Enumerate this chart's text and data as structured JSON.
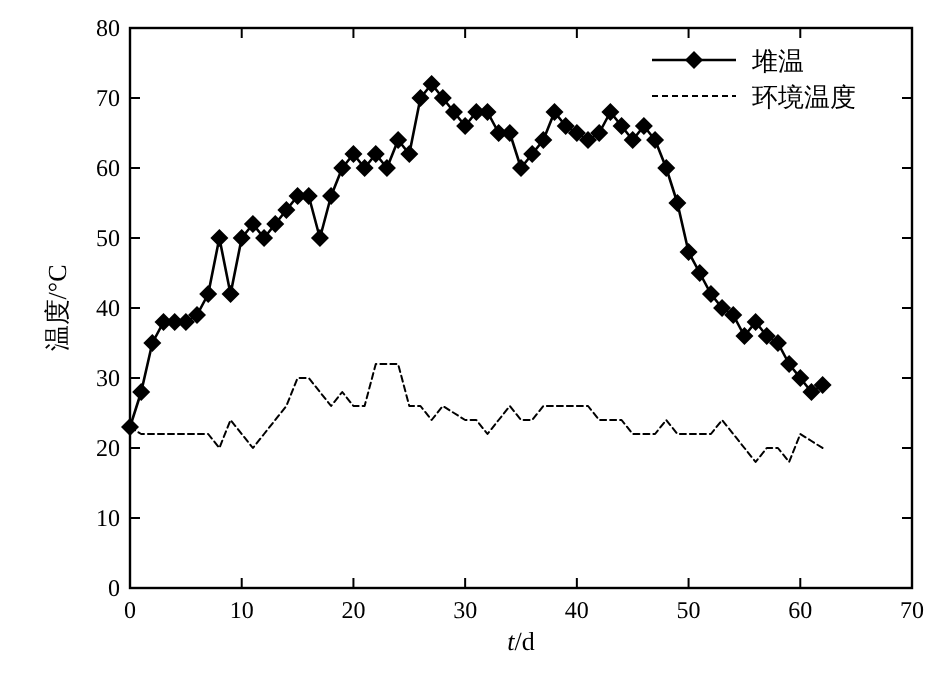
{
  "chart_data": {
    "type": "line",
    "xlabel": "t/d",
    "ylabel": "温度/°C",
    "xlim": [
      0,
      70
    ],
    "xticks": [
      0,
      10,
      20,
      30,
      40,
      50,
      60,
      70
    ],
    "ylim": [
      0,
      80
    ],
    "yticks": [
      0,
      10,
      20,
      30,
      40,
      50,
      60,
      70,
      80
    ],
    "grid": false,
    "legend": "top right",
    "x": [
      0,
      1,
      2,
      3,
      4,
      5,
      6,
      7,
      8,
      9,
      10,
      11,
      12,
      13,
      14,
      15,
      16,
      17,
      18,
      19,
      20,
      21,
      22,
      23,
      24,
      25,
      26,
      27,
      28,
      29,
      30,
      31,
      32,
      33,
      34,
      35,
      36,
      37,
      38,
      39,
      40,
      41,
      42,
      43,
      44,
      45,
      46,
      47,
      48,
      49,
      50,
      51,
      52,
      53,
      54,
      55,
      56,
      57,
      58,
      59,
      60,
      61,
      62
    ],
    "series": [
      {
        "name": "堆温",
        "color": "#000000",
        "marker": "diamond",
        "line_style": "solid",
        "values": [
          23,
          28,
          35,
          38,
          38,
          38,
          39,
          42,
          50,
          42,
          50,
          52,
          50,
          52,
          54,
          56,
          56,
          50,
          56,
          60,
          62,
          60,
          62,
          60,
          64,
          62,
          70,
          72,
          70,
          68,
          66,
          68,
          68,
          65,
          65,
          60,
          62,
          64,
          68,
          66,
          65,
          64,
          65,
          68,
          66,
          64,
          66,
          64,
          60,
          55,
          48,
          45,
          42,
          40,
          39,
          36,
          38,
          36,
          35,
          32,
          30,
          28,
          29
        ]
      },
      {
        "name": "环境温度",
        "color": "#000000",
        "marker": "none",
        "line_style": "dashed",
        "values": [
          23,
          22,
          22,
          22,
          22,
          22,
          22,
          22,
          20,
          24,
          22,
          20,
          22,
          24,
          26,
          30,
          30,
          28,
          26,
          28,
          26,
          26,
          32,
          32,
          32,
          26,
          26,
          24,
          26,
          25,
          24,
          24,
          22,
          24,
          26,
          24,
          24,
          26,
          26,
          26,
          26,
          26,
          24,
          24,
          24,
          22,
          22,
          22,
          24,
          22,
          22,
          22,
          22,
          24,
          22,
          20,
          18,
          20,
          20,
          18,
          22,
          21,
          20
        ]
      }
    ]
  }
}
